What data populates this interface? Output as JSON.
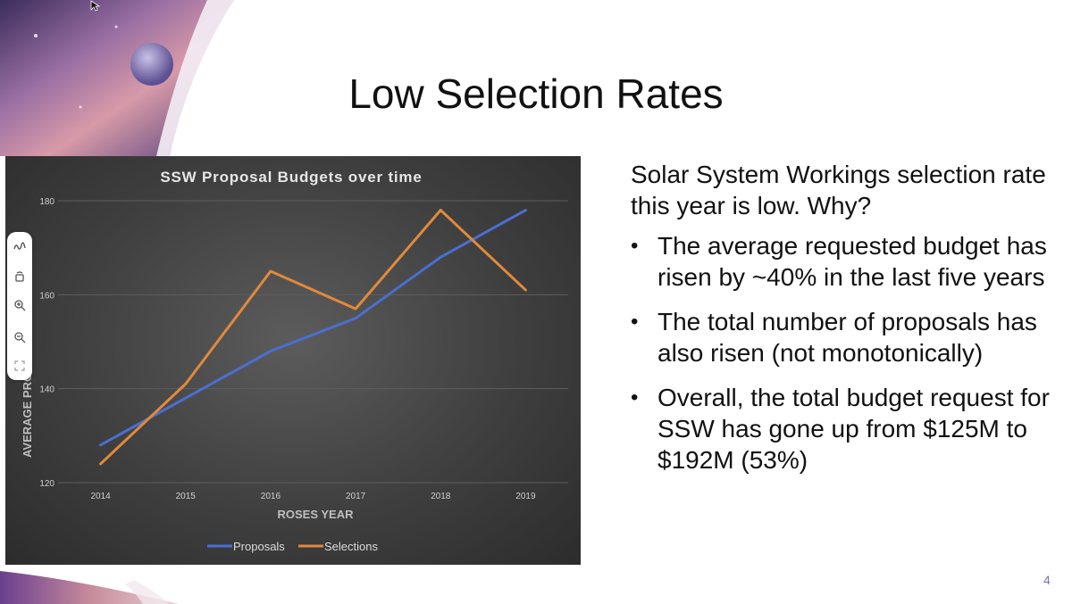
{
  "slide": {
    "title": "Low Selection Rates",
    "page_number": "4"
  },
  "text": {
    "intro": "Solar System Workings selection rate this year is low.  Why?",
    "bullets": [
      "The average requested budget has risen by ~40% in the last five years",
      "The total number of proposals has also risen (not monotonically)",
      "Overall, the total budget request for SSW has gone up from $125M to $192M (53%)"
    ],
    "bullet_glyph": "•"
  },
  "toolbar": {
    "tools": [
      "pen-icon",
      "eraser-icon",
      "zoom-in-icon",
      "zoom-out-icon",
      "fit-screen-icon"
    ]
  },
  "colors": {
    "proposals": "#4a6fd1",
    "selections": "#e08a3c",
    "chart_bg": "#3f3f3f",
    "page_number": "#7b72b8"
  },
  "chart_data": {
    "type": "line",
    "title": "SSW Proposal Budgets over time",
    "xlabel": "ROSES YEAR",
    "ylabel": "AVERAGE PRO",
    "categories": [
      "2014",
      "2015",
      "2016",
      "2017",
      "2018",
      "2019"
    ],
    "ylim": [
      120,
      180
    ],
    "yticks": [
      "120",
      "140",
      "160",
      "180"
    ],
    "grid": true,
    "legend": "bottom",
    "series": [
      {
        "name": "Proposals",
        "color": "#4a6fd1",
        "values": [
          128,
          138,
          148,
          155,
          168,
          178
        ]
      },
      {
        "name": "Selections",
        "color": "#e08a3c",
        "values": [
          124,
          141,
          165,
          157,
          178,
          161
        ]
      }
    ]
  }
}
